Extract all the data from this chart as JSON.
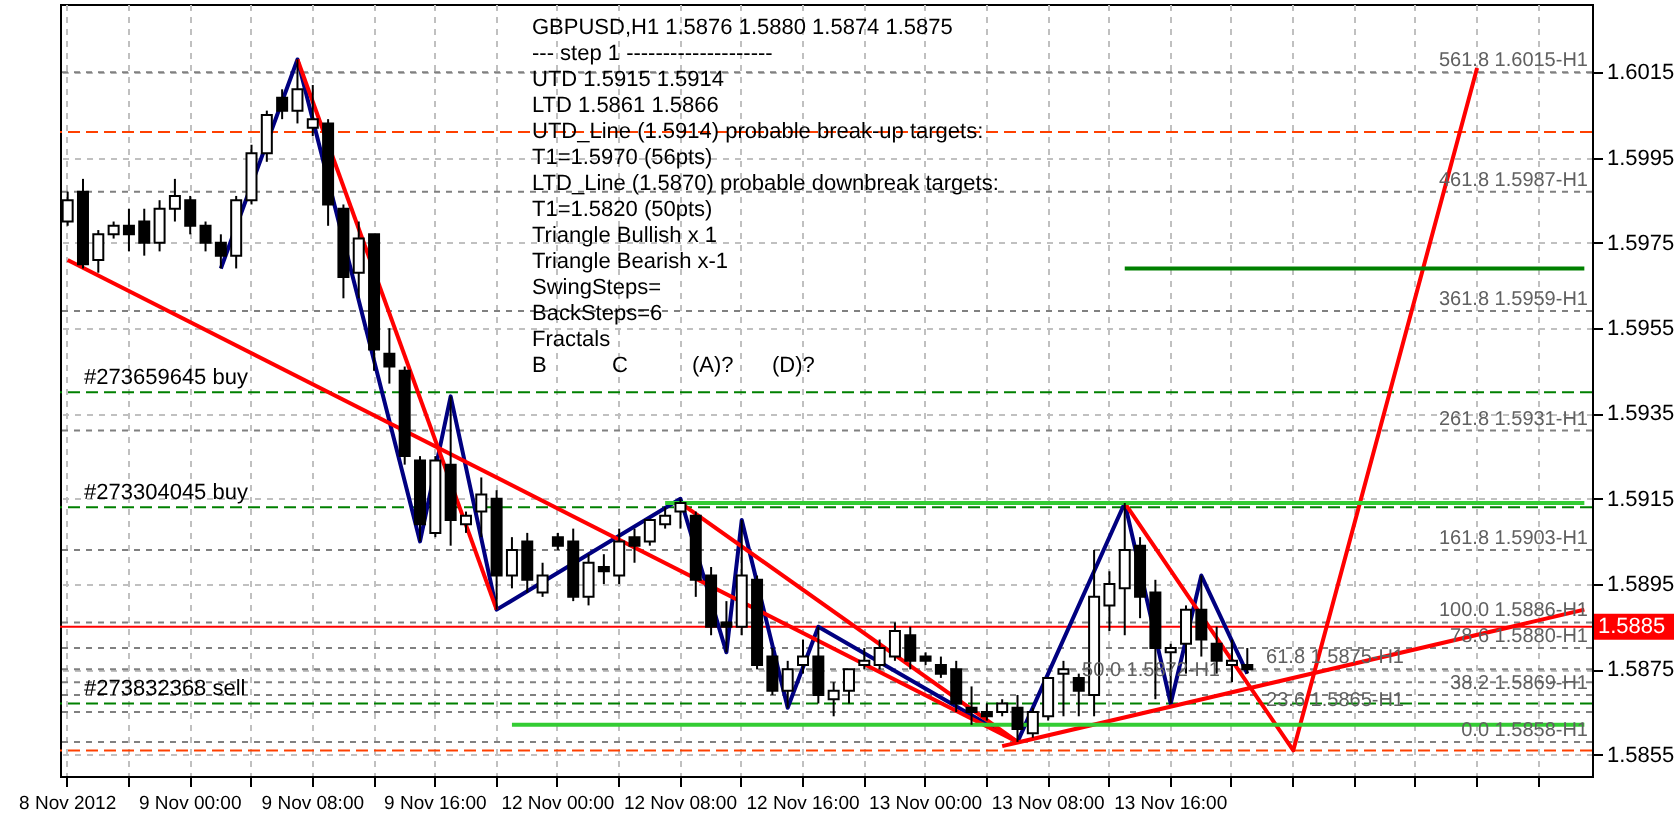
{
  "chart_data": {
    "type": "candlestick",
    "title": "GBPUSD,H1  1.5876 1.5880 1.5874 1.5875",
    "categories": [
      "8 Nov 2012",
      null,
      null,
      null,
      null,
      null,
      null,
      null,
      "9 Nov 00:00",
      null,
      null,
      null,
      null,
      null,
      null,
      null,
      "9 Nov 08:00",
      null,
      null,
      null,
      null,
      null,
      null,
      null,
      "9 Nov 16:00",
      null,
      null,
      null,
      null,
      null,
      null,
      null,
      "12 Nov 00:00",
      null,
      null,
      null,
      null,
      null,
      null,
      null,
      "12 Nov 08:00",
      null,
      null,
      null,
      null,
      null,
      null,
      null,
      "12 Nov 16:00",
      null,
      null,
      null,
      null,
      null,
      null,
      null,
      "13 Nov 00:00",
      null,
      null,
      null,
      null,
      null,
      null,
      null,
      "13 Nov 08:00",
      null,
      null,
      null,
      null,
      null,
      null,
      null,
      "13 Nov 16:00",
      null,
      null,
      null,
      null,
      null,
      null,
      null,
      null,
      null,
      null,
      null,
      null,
      null,
      null,
      null,
      null,
      null,
      null,
      null,
      null,
      null,
      null,
      null,
      null,
      null,
      null,
      null
    ],
    "ohlc": [
      [
        1.598,
        1.5987,
        1.5979,
        1.5985
      ],
      [
        1.5987,
        1.599,
        1.5969,
        1.597
      ],
      [
        1.5971,
        1.5978,
        1.5968,
        1.5977
      ],
      [
        1.5977,
        1.598,
        1.5976,
        1.5979
      ],
      [
        1.5979,
        1.5983,
        1.5973,
        1.5977
      ],
      [
        1.598,
        1.5983,
        1.5972,
        1.5975
      ],
      [
        1.5975,
        1.5985,
        1.5973,
        1.5983
      ],
      [
        1.5983,
        1.599,
        1.598,
        1.5986
      ],
      [
        1.5985,
        1.5986,
        1.5977,
        1.5979
      ],
      [
        1.5979,
        1.598,
        1.5973,
        1.5975
      ],
      [
        1.5975,
        1.5977,
        1.5969,
        1.5972
      ],
      [
        1.5972,
        1.5986,
        1.5969,
        1.5985
      ],
      [
        1.5985,
        1.5998,
        1.5984,
        1.5996
      ],
      [
        1.5996,
        1.6006,
        1.5994,
        1.6005
      ],
      [
        1.6009,
        1.6011,
        1.6004,
        1.6006
      ],
      [
        1.6006,
        1.6018,
        1.6003,
        1.6011
      ],
      [
        1.6002,
        1.6012,
        1.6,
        1.6004
      ],
      [
        1.6003,
        1.6004,
        1.5979,
        1.5984
      ],
      [
        1.5983,
        1.5984,
        1.5962,
        1.5967
      ],
      [
        1.5968,
        1.598,
        1.5962,
        1.5976
      ],
      [
        1.5977,
        1.5977,
        1.5945,
        1.595
      ],
      [
        1.5949,
        1.5955,
        1.5942,
        1.5946
      ],
      [
        1.5945,
        1.5946,
        1.5923,
        1.5925
      ],
      [
        1.5924,
        1.5925,
        1.5905,
        1.5909
      ],
      [
        1.5907,
        1.5925,
        1.5906,
        1.5924
      ],
      [
        1.5923,
        1.5939,
        1.5904,
        1.591
      ],
      [
        1.5909,
        1.5912,
        1.5907,
        1.5911
      ],
      [
        1.5912,
        1.592,
        1.5906,
        1.5916
      ],
      [
        1.5915,
        1.5917,
        1.5889,
        1.5897
      ],
      [
        1.5897,
        1.5906,
        1.5894,
        1.5903
      ],
      [
        1.5905,
        1.5907,
        1.5893,
        1.5896
      ],
      [
        1.5893,
        1.59,
        1.5892,
        1.5897
      ],
      [
        1.5906,
        1.5907,
        1.5903,
        1.5904
      ],
      [
        1.5905,
        1.5908,
        1.5891,
        1.5892
      ],
      [
        1.5892,
        1.5902,
        1.589,
        1.59
      ],
      [
        1.5899,
        1.5902,
        1.5895,
        1.5898
      ],
      [
        1.5897,
        1.5908,
        1.5895,
        1.5905
      ],
      [
        1.5906,
        1.5908,
        1.59,
        1.5904
      ],
      [
        1.5905,
        1.591,
        1.5904,
        1.591
      ],
      [
        1.5909,
        1.5913,
        1.5908,
        1.5911
      ],
      [
        1.5912,
        1.5915,
        1.5908,
        1.5914
      ],
      [
        1.5911,
        1.5912,
        1.5892,
        1.5896
      ],
      [
        1.5897,
        1.5899,
        1.5883,
        1.5885
      ],
      [
        1.5886,
        1.5891,
        1.5879,
        1.5885
      ],
      [
        1.5885,
        1.591,
        1.5883,
        1.5897
      ],
      [
        1.5896,
        1.5897,
        1.5875,
        1.5876
      ],
      [
        1.5878,
        1.588,
        1.5869,
        1.587
      ],
      [
        1.587,
        1.5877,
        1.5866,
        1.5875
      ],
      [
        1.5876,
        1.5882,
        1.5874,
        1.5878
      ],
      [
        1.5878,
        1.5885,
        1.5867,
        1.5869
      ],
      [
        1.5868,
        1.5872,
        1.5864,
        1.587
      ],
      [
        1.587,
        1.5875,
        1.5867,
        1.5875
      ],
      [
        1.5876,
        1.588,
        1.5875,
        1.5877
      ],
      [
        1.5876,
        1.5882,
        1.5875,
        1.588
      ],
      [
        1.5878,
        1.5886,
        1.5877,
        1.5884
      ],
      [
        1.5883,
        1.5885,
        1.5875,
        1.5877
      ],
      [
        1.5878,
        1.5879,
        1.5876,
        1.5877
      ],
      [
        1.5876,
        1.5878,
        1.5873,
        1.5874
      ],
      [
        1.5875,
        1.5877,
        1.5865,
        1.5867
      ],
      [
        1.5866,
        1.5871,
        1.5862,
        1.5865
      ],
      [
        1.5865,
        1.5867,
        1.5863,
        1.5864
      ],
      [
        1.5865,
        1.5868,
        1.5864,
        1.5867
      ],
      [
        1.5866,
        1.5869,
        1.5858,
        1.5861
      ],
      [
        1.586,
        1.5866,
        1.5859,
        1.5865
      ],
      [
        1.5864,
        1.5873,
        1.5863,
        1.5873
      ],
      [
        1.5874,
        1.5877,
        1.5864,
        1.5875
      ],
      [
        1.5873,
        1.5874,
        1.5864,
        1.587
      ],
      [
        1.5869,
        1.5903,
        1.5864,
        1.5892
      ],
      [
        1.589,
        1.5898,
        1.5884,
        1.5895
      ],
      [
        1.5894,
        1.5914,
        1.5883,
        1.5903
      ],
      [
        1.5904,
        1.5906,
        1.5887,
        1.5892
      ],
      [
        1.5893,
        1.5896,
        1.5868,
        1.588
      ],
      [
        1.5879,
        1.5881,
        1.5867,
        1.588
      ],
      [
        1.5881,
        1.589,
        1.5874,
        1.5889
      ],
      [
        1.5889,
        1.5897,
        1.5878,
        1.5882
      ],
      [
        1.5881,
        1.5885,
        1.5874,
        1.5877
      ],
      [
        1.5876,
        1.5882,
        1.5872,
        1.5877
      ],
      [
        1.5876,
        1.588,
        1.5874,
        1.5875
      ],
      null,
      null,
      null,
      null,
      null,
      null,
      null,
      null,
      null,
      null,
      null,
      null,
      null,
      null,
      null,
      null,
      null,
      null,
      null,
      null,
      null,
      null
    ],
    "series": [
      {
        "type": "line",
        "color": "#000080",
        "values": [
          null,
          null,
          null,
          null,
          null,
          null,
          null,
          null,
          null,
          null,
          1.5969,
          null,
          null,
          null,
          null,
          1.6018,
          null,
          null,
          null,
          null,
          null,
          null,
          null,
          1.5905,
          null,
          1.5939,
          null,
          null,
          1.5889,
          null,
          null,
          null,
          null,
          null,
          null,
          null,
          null,
          null,
          null,
          null,
          1.5915,
          null,
          null,
          1.5879,
          1.591,
          null,
          null,
          1.5866,
          null,
          1.5885,
          null,
          null,
          null,
          null,
          null,
          null,
          null,
          null,
          null,
          null,
          null,
          null,
          1.5858,
          null,
          null,
          null,
          null,
          null,
          null,
          1.5914,
          null,
          null,
          1.5867,
          null,
          1.5897,
          null,
          null,
          1.5874,
          null,
          null,
          null,
          null,
          null,
          null,
          null,
          null,
          null,
          null,
          null,
          null,
          null,
          null,
          null,
          null,
          null,
          null,
          null,
          null,
          null,
          null
        ]
      },
      {
        "type": "line",
        "color": "#ff0000",
        "values": [
          null,
          null,
          null,
          null,
          null,
          null,
          null,
          null,
          null,
          null,
          null,
          null,
          null,
          null,
          null,
          1.6018,
          null,
          null,
          null,
          null,
          null,
          null,
          null,
          null,
          null,
          null,
          null,
          null,
          1.5889,
          null,
          null,
          null,
          null,
          null,
          null,
          null,
          null,
          null,
          null,
          null,
          null,
          null,
          null,
          null,
          null,
          null,
          null,
          null,
          null,
          null,
          null,
          null,
          null,
          null,
          null,
          null,
          null,
          null,
          null,
          null,
          null,
          null,
          null,
          null,
          null,
          null,
          null,
          null,
          null,
          null,
          null,
          null,
          null,
          null,
          null,
          null,
          null,
          null,
          null,
          null,
          null,
          null,
          null,
          null,
          null,
          null,
          null,
          null,
          null,
          null,
          null,
          null,
          null,
          null,
          null,
          null,
          null,
          null,
          null,
          null
        ]
      },
      {
        "type": "line",
        "color": "#ff0000",
        "values": [
          1.5971,
          null,
          null,
          null,
          null,
          null,
          null,
          null,
          null,
          null,
          null,
          null,
          null,
          null,
          null,
          null,
          null,
          null,
          null,
          null,
          null,
          null,
          null,
          null,
          null,
          null,
          null,
          null,
          null,
          null,
          null,
          null,
          null,
          null,
          null,
          null,
          null,
          null,
          null,
          null,
          null,
          null,
          null,
          null,
          null,
          null,
          null,
          null,
          null,
          null,
          null,
          null,
          null,
          null,
          null,
          null,
          null,
          null,
          null,
          null,
          null,
          null,
          1.5858,
          null,
          null,
          null,
          null,
          null,
          null,
          null,
          null,
          null,
          null,
          null,
          null,
          null,
          null,
          null,
          null,
          null,
          null,
          null,
          null,
          null,
          null,
          null,
          null,
          null,
          null,
          null,
          null,
          null,
          null,
          null,
          null,
          null,
          null,
          null,
          null,
          null
        ]
      },
      {
        "type": "line",
        "color": "#ff0000",
        "values": [
          null,
          null,
          null,
          null,
          null,
          null,
          null,
          null,
          null,
          null,
          null,
          null,
          null,
          null,
          null,
          null,
          null,
          null,
          null,
          null,
          null,
          null,
          null,
          null,
          null,
          null,
          null,
          null,
          null,
          null,
          null,
          null,
          null,
          null,
          null,
          null,
          null,
          null,
          null,
          null,
          1.5914,
          null,
          null,
          null,
          null,
          null,
          null,
          null,
          null,
          null,
          null,
          null,
          null,
          null,
          null,
          null,
          null,
          null,
          null,
          null,
          null,
          null,
          1.5858,
          null,
          null,
          null,
          null,
          null,
          null,
          null,
          null,
          null,
          null,
          null,
          null,
          null,
          null,
          null,
          null,
          null,
          null,
          null,
          null,
          null,
          null,
          null,
          null,
          null,
          null,
          null,
          null,
          null,
          null,
          null,
          null,
          null,
          null,
          null,
          null,
          null
        ]
      },
      {
        "type": "line",
        "color": "#ff0000",
        "values": [
          null,
          null,
          null,
          null,
          null,
          null,
          null,
          null,
          null,
          null,
          null,
          null,
          null,
          null,
          null,
          null,
          null,
          null,
          null,
          null,
          null,
          null,
          null,
          null,
          null,
          null,
          null,
          null,
          null,
          null,
          null,
          null,
          null,
          null,
          null,
          null,
          null,
          null,
          null,
          null,
          null,
          null,
          null,
          null,
          null,
          null,
          null,
          null,
          null,
          null,
          null,
          null,
          null,
          null,
          null,
          null,
          null,
          null,
          null,
          null,
          null,
          null,
          null,
          null,
          null,
          null,
          null,
          null,
          null,
          1.5914,
          null,
          null,
          null,
          null,
          null,
          null,
          null,
          null,
          null,
          null,
          1.5856,
          null,
          null,
          null,
          null,
          null,
          null,
          null,
          null,
          null,
          null,
          null,
          1.6016,
          null,
          null,
          null,
          null,
          null,
          null,
          null
        ]
      },
      {
        "type": "line",
        "color": "#ff0000",
        "values": [
          null,
          null,
          null,
          null,
          null,
          null,
          null,
          null,
          null,
          null,
          null,
          null,
          null,
          null,
          null,
          null,
          null,
          null,
          null,
          null,
          null,
          null,
          null,
          null,
          null,
          null,
          null,
          null,
          null,
          null,
          null,
          null,
          null,
          null,
          null,
          null,
          null,
          null,
          null,
          null,
          null,
          null,
          null,
          null,
          null,
          null,
          null,
          null,
          null,
          null,
          null,
          null,
          null,
          null,
          null,
          null,
          null,
          null,
          null,
          null,
          null,
          1.5857,
          null,
          null,
          null,
          null,
          null,
          null,
          null,
          null,
          null,
          null,
          null,
          null,
          null,
          null,
          null,
          null,
          null,
          null,
          null,
          null,
          null,
          null,
          null,
          null,
          null,
          null,
          null,
          null,
          null,
          null,
          null,
          null,
          null,
          null,
          null,
          null,
          null,
          1.5889
        ]
      },
      {
        "type": "line",
        "color": "#33cc33",
        "values": [
          null,
          null,
          null,
          null,
          null,
          null,
          null,
          null,
          null,
          null,
          null,
          null,
          null,
          null,
          null,
          null,
          null,
          null,
          null,
          null,
          null,
          null,
          null,
          null,
          null,
          null,
          null,
          null,
          null,
          null,
          null,
          null,
          null,
          null,
          null,
          null,
          null,
          null,
          null,
          1.5914,
          null,
          null,
          null,
          null,
          null,
          null,
          null,
          null,
          null,
          null,
          null,
          null,
          null,
          null,
          null,
          null,
          null,
          null,
          null,
          null,
          null,
          null,
          null,
          null,
          null,
          null,
          null,
          null,
          null,
          null,
          null,
          null,
          null,
          null,
          null,
          null,
          null,
          null,
          null,
          null,
          null,
          null,
          null,
          null,
          null,
          null,
          null,
          null,
          null,
          null,
          null,
          null,
          null,
          null,
          null,
          null,
          null,
          null,
          null,
          1.5914
        ]
      },
      {
        "type": "line",
        "color": "#33cc33",
        "values": [
          null,
          null,
          null,
          null,
          null,
          null,
          null,
          null,
          null,
          null,
          null,
          null,
          null,
          null,
          null,
          null,
          null,
          null,
          null,
          null,
          null,
          null,
          null,
          null,
          null,
          null,
          null,
          null,
          null,
          1.5862,
          null,
          null,
          null,
          null,
          null,
          null,
          null,
          null,
          null,
          null,
          null,
          null,
          null,
          null,
          null,
          null,
          null,
          null,
          null,
          null,
          null,
          null,
          null,
          null,
          null,
          null,
          null,
          null,
          null,
          null,
          null,
          null,
          null,
          null,
          null,
          null,
          null,
          null,
          null,
          null,
          null,
          null,
          null,
          null,
          null,
          null,
          null,
          null,
          null,
          null,
          null,
          null,
          null,
          null,
          null,
          null,
          null,
          null,
          null,
          null,
          null,
          null,
          null,
          null,
          null,
          null,
          null,
          null,
          null,
          1.5862
        ]
      },
      {
        "type": "line",
        "color": "#008000",
        "values": [
          null,
          null,
          null,
          null,
          null,
          null,
          null,
          null,
          null,
          null,
          null,
          null,
          null,
          null,
          null,
          null,
          null,
          null,
          null,
          null,
          null,
          null,
          null,
          null,
          null,
          null,
          null,
          null,
          null,
          null,
          null,
          null,
          null,
          null,
          null,
          null,
          null,
          null,
          null,
          null,
          null,
          null,
          null,
          null,
          null,
          null,
          null,
          null,
          null,
          null,
          null,
          null,
          null,
          null,
          null,
          null,
          null,
          null,
          null,
          null,
          null,
          null,
          null,
          null,
          null,
          null,
          null,
          null,
          null,
          1.5969,
          null,
          null,
          null,
          null,
          null,
          null,
          null,
          null,
          null,
          null,
          null,
          null,
          null,
          null,
          null,
          null,
          null,
          null,
          null,
          null,
          null,
          null,
          null,
          null,
          null,
          null,
          null,
          null,
          null,
          1.5969
        ]
      }
    ],
    "ylim": [
      1.585,
      1.6031
    ],
    "yticks": [
      1.5855,
      1.5875,
      1.5895,
      1.5915,
      1.5935,
      1.5955,
      1.5975,
      1.5995,
      1.6015
    ],
    "grid": true,
    "ref_lines": [
      {
        "axis": "y",
        "value": 1.6015,
        "label": "561.8 1.6015-H1",
        "color": "#808080",
        "line_style": "dotted"
      },
      {
        "axis": "y",
        "value": 1.5987,
        "label": "461.8 1.5987-H1",
        "color": "#808080",
        "line_style": "dotted"
      },
      {
        "axis": "y",
        "value": 1.5959,
        "label": "361.8 1.5959-H1",
        "color": "#808080",
        "line_style": "dotted"
      },
      {
        "axis": "y",
        "value": 1.5931,
        "label": "261.8 1.5931-H1",
        "color": "#808080",
        "line_style": "dotted"
      },
      {
        "axis": "y",
        "value": 1.5903,
        "label": "161.8 1.5903-H1",
        "color": "#808080",
        "line_style": "dotted"
      },
      {
        "axis": "y",
        "value": 1.5886,
        "label": "100.0 1.5886-H1",
        "color": "#808080",
        "line_style": "dotted"
      },
      {
        "axis": "y",
        "value": 1.588,
        "label": "78.6 1.5880-H1",
        "color": "#808080",
        "line_style": "dotted"
      },
      {
        "axis": "y",
        "value": 1.5875,
        "label": "61.8 1.5875-H1",
        "color": "#808080",
        "line_style": "dotted"
      },
      {
        "axis": "y",
        "value": 1.5872,
        "label": "50.0 1.5872-H1",
        "color": "#808080",
        "line_style": "dotted"
      },
      {
        "axis": "y",
        "value": 1.5869,
        "label": "38.2 1.5869-H1",
        "color": "#808080",
        "line_style": "dotted"
      },
      {
        "axis": "y",
        "value": 1.5865,
        "label": "23.6 1.5865-H1",
        "color": "#808080",
        "line_style": "dotted"
      },
      {
        "axis": "y",
        "value": 1.5858,
        "label": "0.0 1.5858-H1",
        "color": "#808080",
        "line_style": "dotted"
      },
      {
        "axis": "y",
        "value": 1.594,
        "label": "#273659645 buy",
        "color": "#008000",
        "line_style": "dashed"
      },
      {
        "axis": "y",
        "value": 1.5913,
        "label": "#273304045 buy",
        "color": "#008000",
        "line_style": "dashed"
      },
      {
        "axis": "y",
        "value": 1.5867,
        "label": "#273832368 sell",
        "color": "#008000",
        "line_style": "dashed"
      },
      {
        "axis": "y",
        "value": 1.6001,
        "color": "#ff4000",
        "line_style": "dashed"
      },
      {
        "axis": "y",
        "value": 1.5856,
        "color": "#ff4000",
        "line_style": "dashed"
      },
      {
        "axis": "y",
        "value": 1.5885,
        "label": "1.5885",
        "color": "#ff0000",
        "line_style": "solid"
      }
    ],
    "annotations": [
      "---    step 1    --------------------",
      "UTD 1.5915  1.5914",
      "LTD 1.5861  1.5866",
      "UTD_Line (1.5914) probable break-up targets:",
      "T1=1.5970 (56pts)",
      "LTD_Line (1.5870) probable downbreak targets:",
      "T1=1.5820 (50pts)",
      "Triangle Bullish x 1",
      "Triangle Bearish x-1",
      "SwingSteps=",
      "BackSteps=6",
      "Fractals",
      "B",
      "C",
      "(A)?",
      "(D)?"
    ]
  }
}
